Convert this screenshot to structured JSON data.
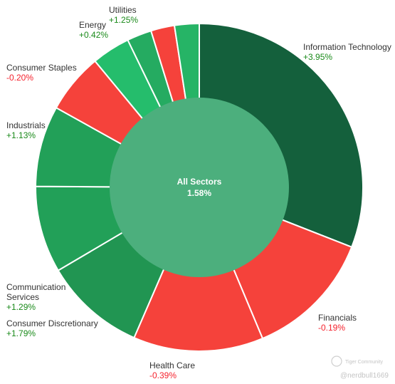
{
  "chart_data": {
    "type": "pie",
    "center": {
      "label": "All Sectors",
      "value": "1.58%"
    },
    "slices": [
      {
        "name": "Information Technology",
        "change": "+3.95%",
        "weight": 31.8,
        "color": "#14603c",
        "direction": "up"
      },
      {
        "name": "Financials",
        "change": "-0.19%",
        "weight": 13.1,
        "color": "#f5423b",
        "direction": "down"
      },
      {
        "name": "Health Care",
        "change": "-0.39%",
        "weight": 13.2,
        "color": "#f5423b",
        "direction": "down"
      },
      {
        "name": "Consumer Discretionary",
        "change": "+1.79%",
        "weight": 10.3,
        "color": "#219552",
        "direction": "up"
      },
      {
        "name": "Communication Services",
        "change": "+1.29%",
        "weight": 8.8,
        "color": "#22a058",
        "direction": "up"
      },
      {
        "name": "Industrials",
        "change": "+1.13%",
        "weight": 8.2,
        "color": "#22a058",
        "direction": "up"
      },
      {
        "name": "Consumer Staples",
        "change": "-0.20%",
        "weight": 6.1,
        "color": "#f5423b",
        "direction": "down"
      },
      {
        "name": "Energy",
        "change": "+0.42%",
        "weight": 3.9,
        "color": "#25bd6c",
        "direction": "up"
      },
      {
        "name": "",
        "change": "",
        "weight": 2.5,
        "color": "#25ab61",
        "direction": "up"
      },
      {
        "name": "",
        "change": "",
        "weight": 2.4,
        "color": "#f5423b",
        "direction": "down"
      },
      {
        "name": "Utilities",
        "change": "+1.25%",
        "weight": 2.5,
        "color": "#26b466",
        "direction": "up"
      }
    ],
    "center_color": "#4caf7d",
    "up_text_color": "#1a8a1a",
    "down_text_color": "#f5222d"
  },
  "watermark": {
    "brand": "Tiger Community",
    "handle": "@nerdbull1669"
  }
}
